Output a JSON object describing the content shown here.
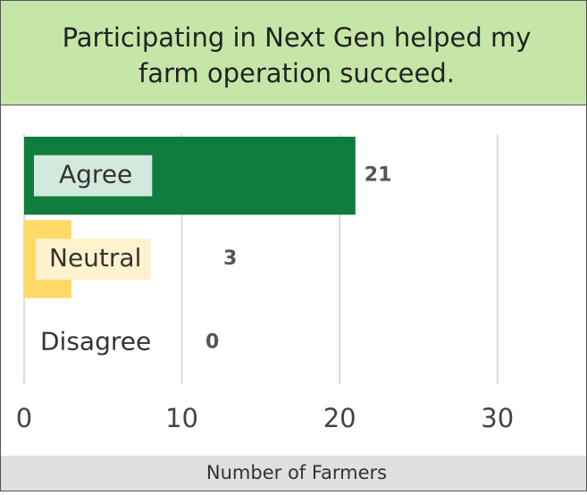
{
  "chart_data": {
    "type": "bar",
    "orientation": "horizontal",
    "title": "Participating in Next Gen helped my farm operation succeed.",
    "x_label": "Number of Farmers",
    "categories": [
      "Agree",
      "Neutral",
      "Disagree"
    ],
    "values": [
      21,
      3,
      0
    ],
    "colors": [
      "#107c3e",
      "#ffd966",
      "#c9c9c9"
    ],
    "label_backgrounds": [
      "#d3e9de",
      "#fff2cc",
      "#ffffff"
    ],
    "xlim": [
      0,
      35
    ],
    "xticks": [
      0,
      10,
      20,
      30
    ],
    "grid": true
  }
}
